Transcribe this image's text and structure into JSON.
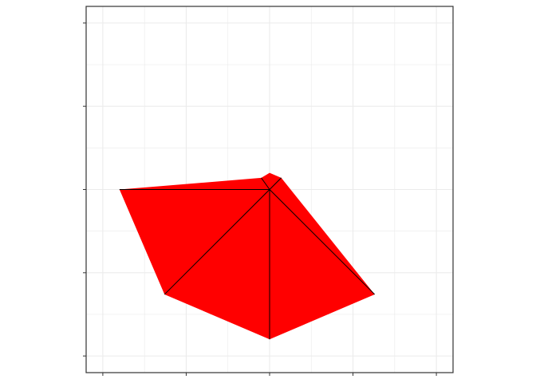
{
  "chart_data": {
    "type": "polygon",
    "title": "",
    "xlabel": "",
    "ylabel": "",
    "xlim": [
      -1.0,
      1.0
    ],
    "ylim": [
      -1.0,
      1.0
    ],
    "x_ticks": [
      -1.0,
      -0.5,
      0.0,
      0.5,
      1.0
    ],
    "y_ticks": [
      -1.0,
      -0.5,
      0.0,
      0.5,
      1.0
    ],
    "tick_labels_shown": false,
    "grid": true,
    "legend": "none",
    "fill_color": "#ff0000",
    "edge_color": "#000000",
    "panel_border_color": "#333333",
    "grid_color": "#ebebeb",
    "center": [
      0.0,
      0.0
    ],
    "polygon": [
      [
        -0.9,
        0.0
      ],
      [
        -0.05,
        0.07
      ],
      [
        0.0,
        0.1
      ],
      [
        0.07,
        0.07
      ],
      [
        0.63,
        -0.63
      ],
      [
        0.0,
        -0.9
      ],
      [
        -0.63,
        -0.63
      ]
    ],
    "spokes": [
      [
        -0.9,
        0.0
      ],
      [
        -0.05,
        0.07
      ],
      [
        0.07,
        0.07
      ],
      [
        0.63,
        -0.63
      ],
      [
        0.0,
        -0.9
      ],
      [
        -0.63,
        -0.63
      ]
    ]
  }
}
